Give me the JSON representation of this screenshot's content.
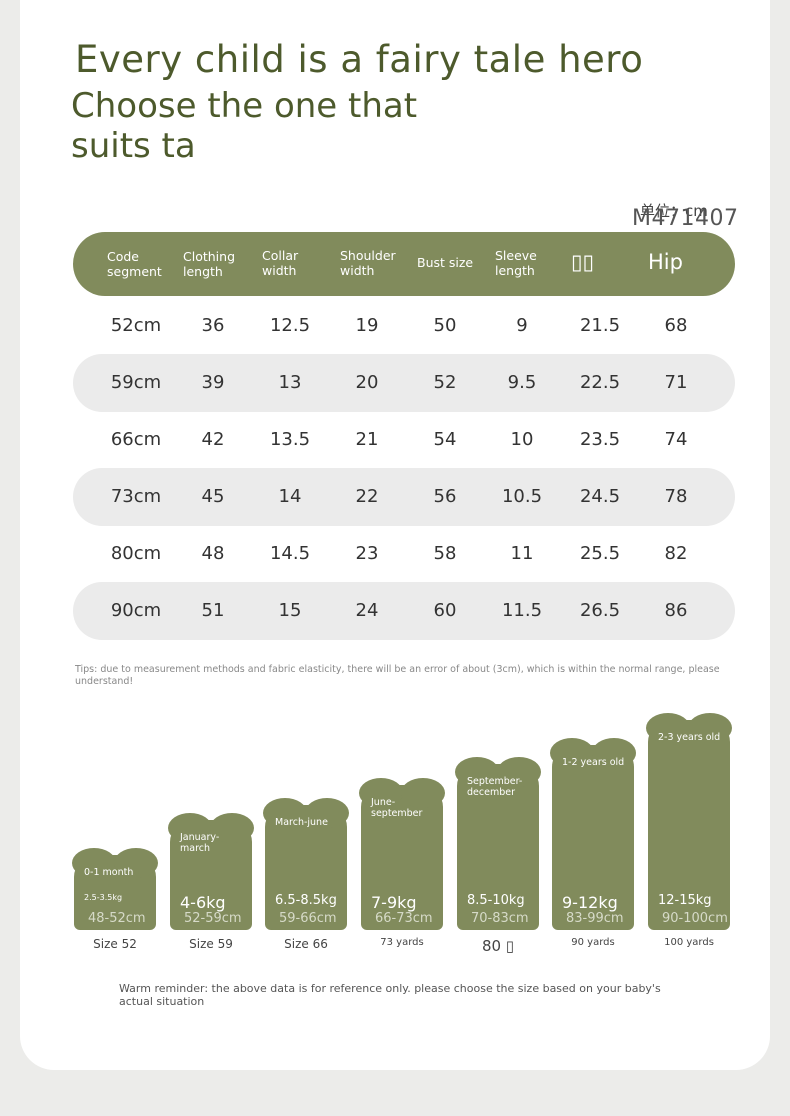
{
  "title": "Every child is a fairy tale hero",
  "subtitle": "Choose the one that suits ta",
  "unit_label": "单位：cm",
  "product_code": "M471407",
  "table": {
    "headers": [
      "Code segment",
      "Clothing length",
      "Collar width",
      "Shoulder width",
      "Bust size",
      "Sleeve length",
      "▯▯",
      "Hip"
    ],
    "rows": [
      [
        "52cm",
        "36",
        "12.5",
        "19",
        "50",
        "9",
        "21.5",
        "68"
      ],
      [
        "59cm",
        "39",
        "13",
        "20",
        "52",
        "9.5",
        "22.5",
        "71"
      ],
      [
        "66cm",
        "42",
        "13.5",
        "21",
        "54",
        "10",
        "23.5",
        "74"
      ],
      [
        "73cm",
        "45",
        "14",
        "22",
        "56",
        "10.5",
        "24.5",
        "78"
      ],
      [
        "80cm",
        "48",
        "14.5",
        "23",
        "58",
        "11",
        "25.5",
        "82"
      ],
      [
        "90cm",
        "51",
        "15",
        "24",
        "60",
        "11.5",
        "26.5",
        "86"
      ]
    ]
  },
  "tips": "Tips: due to measurement methods and fabric elasticity, there will be an error of about (3cm), which is within the normal range, please understand!",
  "sizes": [
    {
      "age": "0-1 month",
      "weight": "2.5-3.5kg",
      "height": "48-52cm",
      "label": "Size 52"
    },
    {
      "age": "January-march",
      "weight": "4-6kg",
      "height": "52-59cm",
      "label": "Size 59"
    },
    {
      "age": "March-june",
      "weight": "6.5-8.5kg",
      "height": "59-66cm",
      "label": "Size 66"
    },
    {
      "age": "June-september",
      "weight": "7-9kg",
      "height": "66-73cm",
      "label": "73 yards"
    },
    {
      "age": "September-december",
      "weight": "8.5-10kg",
      "height": "70-83cm",
      "label": "80 ▯"
    },
    {
      "age": "1-2 years old",
      "weight": "9-12kg",
      "height": "83-99cm",
      "label": "90 yards"
    },
    {
      "age": "2-3 years old",
      "weight": "12-15kg",
      "height": "90-100cm",
      "label": "100 yards"
    }
  ],
  "reminder": "Warm reminder: the above data is for reference only. please choose the size based on your baby's actual situation",
  "colors": {
    "accent": "#818b5c",
    "title": "#4d5a2c",
    "row_shade": "#ebebeb"
  }
}
